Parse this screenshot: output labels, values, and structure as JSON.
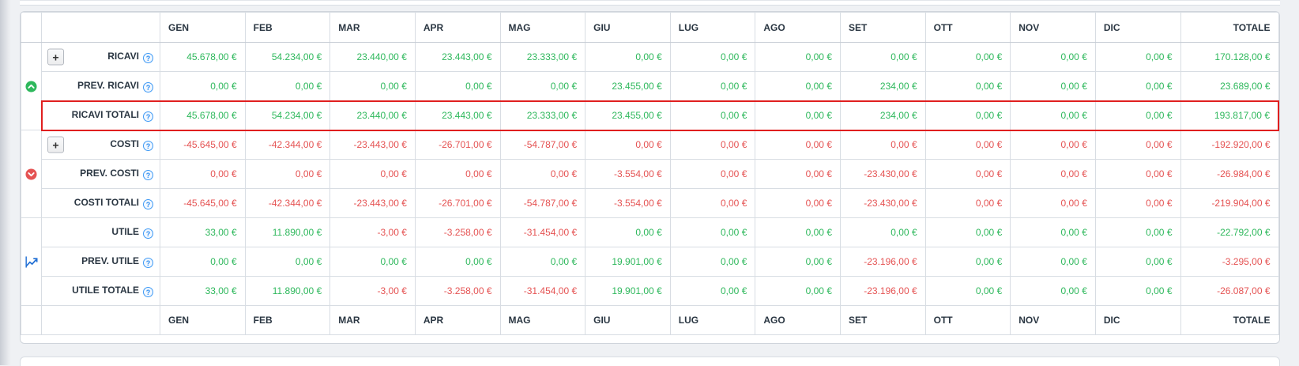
{
  "colors": {
    "positive": "#2eb85c",
    "negative": "#e55353",
    "highlight_border": "#e01f1f",
    "info_icon": "#3d99f5",
    "chart_icon": "#1f6ed4"
  },
  "table": {
    "help_symbol": "?",
    "expand_symbol": "+",
    "columns": [
      "GEN",
      "FEB",
      "MAR",
      "APR",
      "MAG",
      "GIU",
      "LUG",
      "AGO",
      "SET",
      "OTT",
      "NOV",
      "DIC",
      "TOTALE"
    ],
    "groups": [
      {
        "icon": "trend-up-circle-icon",
        "rows": [
          {
            "label": "RICAVI",
            "has_plus": true,
            "highlight": false,
            "cells": [
              {
                "t": "45.678,00 €",
                "c": "pos"
              },
              {
                "t": "54.234,00 €",
                "c": "pos"
              },
              {
                "t": "23.440,00 €",
                "c": "pos"
              },
              {
                "t": "23.443,00 €",
                "c": "pos"
              },
              {
                "t": "23.333,00 €",
                "c": "pos"
              },
              {
                "t": "0,00 €",
                "c": "pos"
              },
              {
                "t": "0,00 €",
                "c": "pos"
              },
              {
                "t": "0,00 €",
                "c": "pos"
              },
              {
                "t": "0,00 €",
                "c": "pos"
              },
              {
                "t": "0,00 €",
                "c": "pos"
              },
              {
                "t": "0,00 €",
                "c": "pos"
              },
              {
                "t": "0,00 €",
                "c": "pos"
              },
              {
                "t": "170.128,00 €",
                "c": "pos"
              }
            ]
          },
          {
            "label": "PREV. RICAVI",
            "has_plus": false,
            "highlight": false,
            "cells": [
              {
                "t": "0,00 €",
                "c": "pos"
              },
              {
                "t": "0,00 €",
                "c": "pos"
              },
              {
                "t": "0,00 €",
                "c": "pos"
              },
              {
                "t": "0,00 €",
                "c": "pos"
              },
              {
                "t": "0,00 €",
                "c": "pos"
              },
              {
                "t": "23.455,00 €",
                "c": "pos"
              },
              {
                "t": "0,00 €",
                "c": "pos"
              },
              {
                "t": "0,00 €",
                "c": "pos"
              },
              {
                "t": "234,00 €",
                "c": "pos"
              },
              {
                "t": "0,00 €",
                "c": "pos"
              },
              {
                "t": "0,00 €",
                "c": "pos"
              },
              {
                "t": "0,00 €",
                "c": "pos"
              },
              {
                "t": "23.689,00 €",
                "c": "pos"
              }
            ]
          },
          {
            "label": "RICAVI TOTALI",
            "has_plus": false,
            "highlight": true,
            "cells": [
              {
                "t": "45.678,00 €",
                "c": "pos"
              },
              {
                "t": "54.234,00 €",
                "c": "pos"
              },
              {
                "t": "23.440,00 €",
                "c": "pos"
              },
              {
                "t": "23.443,00 €",
                "c": "pos"
              },
              {
                "t": "23.333,00 €",
                "c": "pos"
              },
              {
                "t": "23.455,00 €",
                "c": "pos"
              },
              {
                "t": "0,00 €",
                "c": "pos"
              },
              {
                "t": "0,00 €",
                "c": "pos"
              },
              {
                "t": "234,00 €",
                "c": "pos"
              },
              {
                "t": "0,00 €",
                "c": "pos"
              },
              {
                "t": "0,00 €",
                "c": "pos"
              },
              {
                "t": "0,00 €",
                "c": "pos"
              },
              {
                "t": "193.817,00 €",
                "c": "pos"
              }
            ]
          }
        ]
      },
      {
        "icon": "trend-down-circle-icon",
        "rows": [
          {
            "label": "COSTI",
            "has_plus": true,
            "highlight": false,
            "cells": [
              {
                "t": "-45.645,00 €",
                "c": "neg"
              },
              {
                "t": "-42.344,00 €",
                "c": "neg"
              },
              {
                "t": "-23.443,00 €",
                "c": "neg"
              },
              {
                "t": "-26.701,00 €",
                "c": "neg"
              },
              {
                "t": "-54.787,00 €",
                "c": "neg"
              },
              {
                "t": "0,00 €",
                "c": "neg"
              },
              {
                "t": "0,00 €",
                "c": "neg"
              },
              {
                "t": "0,00 €",
                "c": "neg"
              },
              {
                "t": "0,00 €",
                "c": "neg"
              },
              {
                "t": "0,00 €",
                "c": "neg"
              },
              {
                "t": "0,00 €",
                "c": "neg"
              },
              {
                "t": "0,00 €",
                "c": "neg"
              },
              {
                "t": "-192.920,00 €",
                "c": "neg"
              }
            ]
          },
          {
            "label": "PREV. COSTI",
            "has_plus": false,
            "highlight": false,
            "cells": [
              {
                "t": "0,00 €",
                "c": "neg"
              },
              {
                "t": "0,00 €",
                "c": "neg"
              },
              {
                "t": "0,00 €",
                "c": "neg"
              },
              {
                "t": "0,00 €",
                "c": "neg"
              },
              {
                "t": "0,00 €",
                "c": "neg"
              },
              {
                "t": "-3.554,00 €",
                "c": "neg"
              },
              {
                "t": "0,00 €",
                "c": "neg"
              },
              {
                "t": "0,00 €",
                "c": "neg"
              },
              {
                "t": "-23.430,00 €",
                "c": "neg"
              },
              {
                "t": "0,00 €",
                "c": "neg"
              },
              {
                "t": "0,00 €",
                "c": "neg"
              },
              {
                "t": "0,00 €",
                "c": "neg"
              },
              {
                "t": "-26.984,00 €",
                "c": "neg"
              }
            ]
          },
          {
            "label": "COSTI TOTALI",
            "has_plus": false,
            "highlight": false,
            "cells": [
              {
                "t": "-45.645,00 €",
                "c": "neg"
              },
              {
                "t": "-42.344,00 €",
                "c": "neg"
              },
              {
                "t": "-23.443,00 €",
                "c": "neg"
              },
              {
                "t": "-26.701,00 €",
                "c": "neg"
              },
              {
                "t": "-54.787,00 €",
                "c": "neg"
              },
              {
                "t": "-3.554,00 €",
                "c": "neg"
              },
              {
                "t": "0,00 €",
                "c": "neg"
              },
              {
                "t": "0,00 €",
                "c": "neg"
              },
              {
                "t": "-23.430,00 €",
                "c": "neg"
              },
              {
                "t": "0,00 €",
                "c": "neg"
              },
              {
                "t": "0,00 €",
                "c": "neg"
              },
              {
                "t": "0,00 €",
                "c": "neg"
              },
              {
                "t": "-219.904,00 €",
                "c": "neg"
              }
            ]
          }
        ]
      },
      {
        "icon": "chart-line-icon",
        "rows": [
          {
            "label": "UTILE",
            "has_plus": false,
            "highlight": false,
            "cells": [
              {
                "t": "33,00 €",
                "c": "pos"
              },
              {
                "t": "11.890,00 €",
                "c": "pos"
              },
              {
                "t": "-3,00 €",
                "c": "neg"
              },
              {
                "t": "-3.258,00 €",
                "c": "neg"
              },
              {
                "t": "-31.454,00 €",
                "c": "neg"
              },
              {
                "t": "0,00 €",
                "c": "pos"
              },
              {
                "t": "0,00 €",
                "c": "pos"
              },
              {
                "t": "0,00 €",
                "c": "pos"
              },
              {
                "t": "0,00 €",
                "c": "pos"
              },
              {
                "t": "0,00 €",
                "c": "pos"
              },
              {
                "t": "0,00 €",
                "c": "pos"
              },
              {
                "t": "0,00 €",
                "c": "pos"
              },
              {
                "t": "-22.792,00 €",
                "c": "pos"
              }
            ]
          },
          {
            "label": "PREV. UTILE",
            "has_plus": false,
            "highlight": false,
            "cells": [
              {
                "t": "0,00 €",
                "c": "pos"
              },
              {
                "t": "0,00 €",
                "c": "pos"
              },
              {
                "t": "0,00 €",
                "c": "pos"
              },
              {
                "t": "0,00 €",
                "c": "pos"
              },
              {
                "t": "0,00 €",
                "c": "pos"
              },
              {
                "t": "19.901,00 €",
                "c": "pos"
              },
              {
                "t": "0,00 €",
                "c": "pos"
              },
              {
                "t": "0,00 €",
                "c": "pos"
              },
              {
                "t": "-23.196,00 €",
                "c": "neg"
              },
              {
                "t": "0,00 €",
                "c": "pos"
              },
              {
                "t": "0,00 €",
                "c": "pos"
              },
              {
                "t": "0,00 €",
                "c": "pos"
              },
              {
                "t": "-3.295,00 €",
                "c": "neg"
              }
            ]
          },
          {
            "label": "UTILE TOTALE",
            "has_plus": false,
            "highlight": false,
            "cells": [
              {
                "t": "33,00 €",
                "c": "pos"
              },
              {
                "t": "11.890,00 €",
                "c": "pos"
              },
              {
                "t": "-3,00 €",
                "c": "neg"
              },
              {
                "t": "-3.258,00 €",
                "c": "neg"
              },
              {
                "t": "-31.454,00 €",
                "c": "neg"
              },
              {
                "t": "19.901,00 €",
                "c": "pos"
              },
              {
                "t": "0,00 €",
                "c": "pos"
              },
              {
                "t": "0,00 €",
                "c": "pos"
              },
              {
                "t": "-23.196,00 €",
                "c": "neg"
              },
              {
                "t": "0,00 €",
                "c": "pos"
              },
              {
                "t": "0,00 €",
                "c": "pos"
              },
              {
                "t": "0,00 €",
                "c": "pos"
              },
              {
                "t": "-26.087,00 €",
                "c": "neg"
              }
            ]
          }
        ]
      }
    ]
  }
}
